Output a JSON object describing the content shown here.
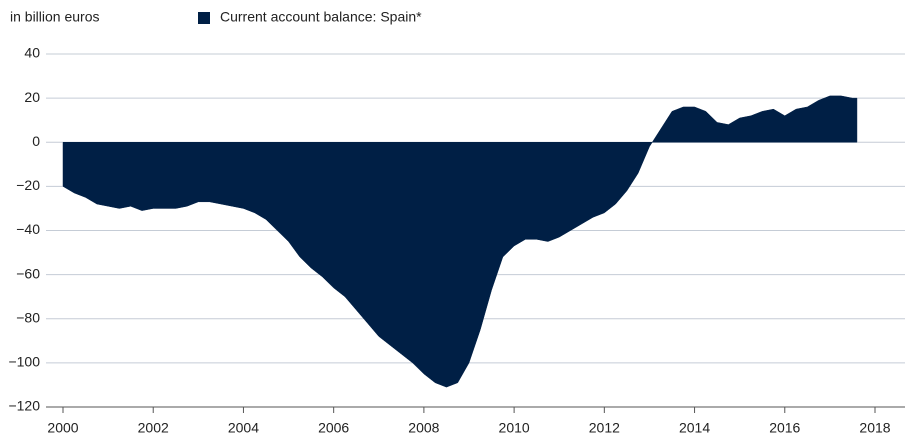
{
  "chart_data": {
    "type": "area",
    "y_axis_label": "in billion euros",
    "series": [
      {
        "name": "Current account balance: Spain*",
        "color": "#001f45",
        "values": [
          -20,
          -23,
          -25,
          -28,
          -29,
          -30,
          -29,
          -31,
          -30,
          -30,
          -30,
          -29,
          -27,
          -27,
          -28,
          -29,
          -30,
          -32,
          -35,
          -40,
          -45,
          -52,
          -57,
          -61,
          -66,
          -70,
          -76,
          -82,
          -88,
          -92,
          -96,
          -100,
          -105,
          -109,
          -111,
          -109,
          -100,
          -85,
          -67,
          -52,
          -47,
          -44,
          -44,
          -45,
          -43,
          -40,
          -37,
          -34,
          -32,
          -28,
          -22,
          -14,
          -2,
          6,
          14,
          16,
          16,
          14,
          9,
          8,
          11,
          12,
          14,
          15,
          12,
          15,
          16,
          19,
          21,
          21,
          20,
          20
        ]
      }
    ],
    "x": [
      2000,
      2000.25,
      2000.5,
      2000.75,
      2001,
      2001.25,
      2001.5,
      2001.75,
      2002,
      2002.25,
      2002.5,
      2002.75,
      2003,
      2003.25,
      2003.5,
      2003.75,
      2004,
      2004.25,
      2004.5,
      2004.75,
      2005,
      2005.25,
      2005.5,
      2005.75,
      2006,
      2006.25,
      2006.5,
      2006.75,
      2007,
      2007.25,
      2007.5,
      2007.75,
      2008,
      2008.25,
      2008.5,
      2008.75,
      2009,
      2009.25,
      2009.5,
      2009.75,
      2010,
      2010.25,
      2010.5,
      2010.75,
      2011,
      2011.25,
      2011.5,
      2011.75,
      2012,
      2012.25,
      2012.5,
      2012.75,
      2013,
      2013.25,
      2013.5,
      2013.75,
      2014,
      2014.25,
      2014.5,
      2014.75,
      2015,
      2015.25,
      2015.5,
      2015.75,
      2016,
      2016.25,
      2016.5,
      2016.75,
      2017,
      2017.25,
      2017.5,
      2017.6
    ],
    "xlim": [
      2000,
      2018
    ],
    "xticks": [
      2000,
      2002,
      2004,
      2006,
      2008,
      2010,
      2012,
      2014,
      2016,
      2018
    ],
    "ylim": [
      -120,
      40
    ],
    "yticks": [
      {
        "value": -120,
        "label": "−120"
      },
      {
        "value": -100,
        "label": "−100"
      },
      {
        "value": -80,
        "label": "−80"
      },
      {
        "value": -60,
        "label": "−60"
      },
      {
        "value": -40,
        "label": "−40"
      },
      {
        "value": -20,
        "label": "−20"
      },
      0,
      20,
      40
    ],
    "grid": true
  }
}
